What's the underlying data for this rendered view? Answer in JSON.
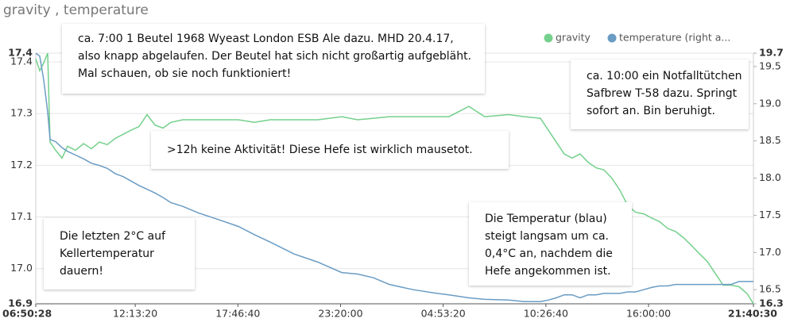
{
  "chart_data": {
    "type": "line",
    "title": "gravity , temperature",
    "x": [
      0,
      774,
      1548,
      2322,
      2786,
      3870,
      5108,
      6192,
      7740,
      9288,
      10836,
      12384,
      13932,
      15480,
      17028,
      18576,
      20124,
      21672,
      23220,
      24768,
      26316,
      28638,
      31734,
      34830,
      39474,
      42570,
      45666,
      50310,
      54954,
      59598,
      62694,
      65790,
      68886,
      73530,
      78174,
      80496,
      84366,
      87462,
      92106,
      95202,
      98298,
      99846,
      101394,
      102942,
      104490,
      106038,
      107586,
      109134,
      110682,
      112230,
      113778,
      115326,
      116874,
      118422,
      119970,
      121518,
      123066,
      124614,
      126162,
      127710,
      129258,
      130806,
      132354,
      133902,
      135450,
      136998,
      138546,
      139802
    ],
    "series": [
      {
        "name": "gravity",
        "color": "#74d08c",
        "values": [
          17.406,
          17.383,
          17.398,
          17.417,
          17.245,
          17.229,
          17.214,
          17.237,
          17.229,
          17.242,
          17.232,
          17.245,
          17.24,
          17.252,
          17.26,
          17.268,
          17.275,
          17.298,
          17.278,
          17.272,
          17.283,
          17.288,
          17.288,
          17.288,
          17.288,
          17.283,
          17.288,
          17.288,
          17.288,
          17.294,
          17.288,
          17.291,
          17.294,
          17.294,
          17.294,
          17.294,
          17.314,
          17.294,
          17.298,
          17.294,
          17.291,
          17.268,
          17.245,
          17.222,
          17.214,
          17.222,
          17.206,
          17.195,
          17.191,
          17.175,
          17.152,
          17.122,
          17.109,
          17.106,
          17.098,
          17.091,
          17.078,
          17.072,
          17.06,
          17.045,
          17.029,
          17.014,
          16.991,
          16.968,
          16.968,
          16.965,
          16.952,
          16.932
        ]
      },
      {
        "name": "temperature (right a...",
        "color": "#6a9cc4",
        "axis": "y2",
        "values": [
          19.68,
          19.64,
          19.32,
          18.89,
          18.52,
          18.49,
          18.41,
          18.36,
          18.31,
          18.26,
          18.2,
          18.17,
          18.13,
          18.06,
          18.02,
          17.96,
          17.9,
          17.85,
          17.8,
          17.74,
          17.67,
          17.62,
          17.53,
          17.46,
          17.35,
          17.24,
          17.14,
          16.98,
          16.87,
          16.73,
          16.71,
          16.66,
          16.57,
          16.5,
          16.45,
          16.43,
          16.39,
          16.37,
          16.36,
          16.34,
          16.34,
          16.36,
          16.39,
          16.43,
          16.43,
          16.39,
          16.43,
          16.43,
          16.45,
          16.45,
          16.45,
          16.47,
          16.47,
          16.5,
          16.53,
          16.55,
          16.55,
          16.57,
          16.57,
          16.57,
          16.57,
          16.57,
          16.57,
          16.57,
          16.57,
          16.61,
          16.61,
          16.61
        ]
      }
    ],
    "xlim": [
      0,
      139802
    ],
    "xticks": [
      {
        "value": 0,
        "label": "06:50:28"
      },
      {
        "value": 19372,
        "label": "12:13:20"
      },
      {
        "value": 39372,
        "label": "17:46:40"
      },
      {
        "value": 59372,
        "label": "23:20:00"
      },
      {
        "value": 79372,
        "label": "04:53:20"
      },
      {
        "value": 99372,
        "label": "10:26:40"
      },
      {
        "value": 119372,
        "label": "16:00:00"
      },
      {
        "value": 139802,
        "label": "21:40:30"
      }
    ],
    "ylim": [
      16.932,
      17.417
    ],
    "yticks": [
      {
        "value": 16.932,
        "label": "16.9"
      },
      {
        "value": 17.0,
        "label": "17.0"
      },
      17.1,
      17.2,
      17.3,
      17.4,
      {
        "value": 17.417,
        "label": "17.4"
      }
    ],
    "y2lim": [
      16.31,
      19.68
    ],
    "y2ticks": [
      {
        "value": 16.31,
        "label": "16.3"
      },
      16.5,
      {
        "value": 17.0,
        "label": "17.0"
      },
      17.5,
      {
        "value": 18.0,
        "label": "18.0"
      },
      18.5,
      {
        "value": 19.0,
        "label": "19.0"
      },
      19.5,
      {
        "value": 19.68,
        "label": "19.7"
      }
    ],
    "grid": true,
    "legend": "top-right",
    "annotations": [
      {
        "lines": [
          "ca. 7:00 1 Beutel 1968 Wyeast London ESB Ale dazu. MHD 20.4.17,",
          "also knapp abgelaufen.  Der Beutel hat sich nicht großartig aufgebläht.",
          "Mal schauen, ob sie noch funktioniert!"
        ]
      },
      {
        "lines": [
          "ca. 10:00 ein Notfalltütchen",
          "Safbrew T-58 dazu. Springt",
          "sofort an. Bin beruhigt."
        ]
      },
      {
        "lines": [
          ">12h keine Aktivität! Diese Hefe ist wirklich  mausetot."
        ]
      },
      {
        "lines": [
          "Die letzten 2°C auf",
          "Kellertemperatur",
          "dauern!"
        ]
      },
      {
        "lines": [
          "Die Temperatur  (blau)",
          "steigt langsam um  ca.",
          "0,4°C an, nachdem die",
          "Hefe angekommen ist."
        ]
      }
    ]
  }
}
